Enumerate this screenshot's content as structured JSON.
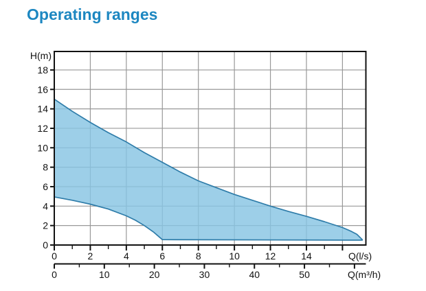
{
  "page": {
    "title": "Operating ranges"
  },
  "colors": {
    "title": "#1d87c1",
    "region_fill": "rgba(136,197,227,0.82)",
    "region_stroke": "#2e7ca9",
    "grid": "#989898",
    "axis": "#111111",
    "label_text": "#111111",
    "background": "#ffffff"
  },
  "chart_data": {
    "type": "area",
    "title": "Operating ranges",
    "ylabel": "H(m)",
    "xlabel_primary": "Q(l/s)",
    "xlabel_secondary": "Q(m³/h)",
    "ylim": [
      0,
      19.9
    ],
    "xlim_ls": [
      0,
      17.3
    ],
    "grid": true,
    "y_axis": {
      "labeled_ticks": [
        0,
        2,
        4,
        6,
        8,
        10,
        12,
        14,
        16,
        18
      ]
    },
    "x_axis_ls": {
      "labeled_ticks": [
        0,
        2,
        4,
        6,
        8,
        10,
        12,
        14
      ],
      "unlabeled_major_ticks": [
        16
      ],
      "minor_ticks": [
        1,
        3,
        5,
        7,
        9,
        11,
        13,
        15
      ]
    },
    "x_axis_m3h": {
      "labeled_ticks": [
        0,
        10,
        20,
        30,
        40,
        50
      ],
      "unlabeled_major_ticks": [
        60
      ],
      "minor_ticks": [
        5,
        15,
        25,
        35,
        45,
        55
      ]
    },
    "series": [
      {
        "name": "operating-range-envelope",
        "upper_boundary_ls": [
          [
            0,
            15.0
          ],
          [
            1,
            13.75
          ],
          [
            2,
            12.6
          ],
          [
            3,
            11.55
          ],
          [
            4,
            10.6
          ],
          [
            5,
            9.5
          ],
          [
            6,
            8.5
          ],
          [
            7,
            7.5
          ],
          [
            8,
            6.6
          ],
          [
            9,
            5.9
          ],
          [
            10,
            5.2
          ],
          [
            11,
            4.6
          ],
          [
            12,
            4.0
          ],
          [
            13,
            3.45
          ],
          [
            14,
            2.95
          ],
          [
            15,
            2.4
          ],
          [
            16,
            1.8
          ],
          [
            16.5,
            1.4
          ],
          [
            16.8,
            1.1
          ],
          [
            17.1,
            0.55
          ]
        ],
        "lower_boundary_ls": [
          [
            0,
            4.95
          ],
          [
            1,
            4.6
          ],
          [
            2,
            4.2
          ],
          [
            3,
            3.7
          ],
          [
            4,
            3.0
          ],
          [
            4.5,
            2.55
          ],
          [
            5,
            2.0
          ],
          [
            5.5,
            1.35
          ],
          [
            6,
            0.55
          ],
          [
            17.1,
            0.5
          ]
        ]
      }
    ]
  }
}
